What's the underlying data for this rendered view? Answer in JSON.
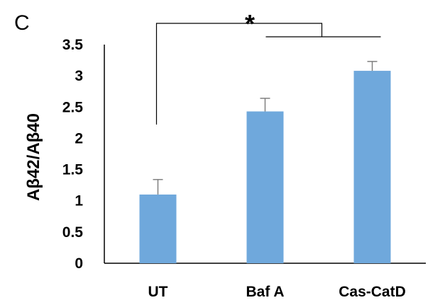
{
  "panel_label": "C",
  "significance_label": "*",
  "chart_data": {
    "type": "bar",
    "categories": [
      "UT",
      "Baf A",
      "Cas-CatD"
    ],
    "values": [
      1.1,
      2.43,
      3.08
    ],
    "errors": [
      0.24,
      0.21,
      0.15
    ],
    "title": "",
    "xlabel": "",
    "ylabel": "Aβ42/Aβ40",
    "ylim": [
      0,
      3.5
    ],
    "yticks": [
      0,
      0.5,
      1,
      1.5,
      2,
      2.5,
      3,
      3.5
    ],
    "ytick_labels": [
      "0",
      "0.5",
      "1",
      "1.5",
      "2",
      "2.5",
      "3",
      "3.5"
    ],
    "bar_color": "#6FA8DC",
    "significance": {
      "label": "*",
      "from_category": "UT",
      "to_categories": [
        "Baf A",
        "Cas-CatD"
      ]
    },
    "grid": false,
    "legend": "none"
  }
}
